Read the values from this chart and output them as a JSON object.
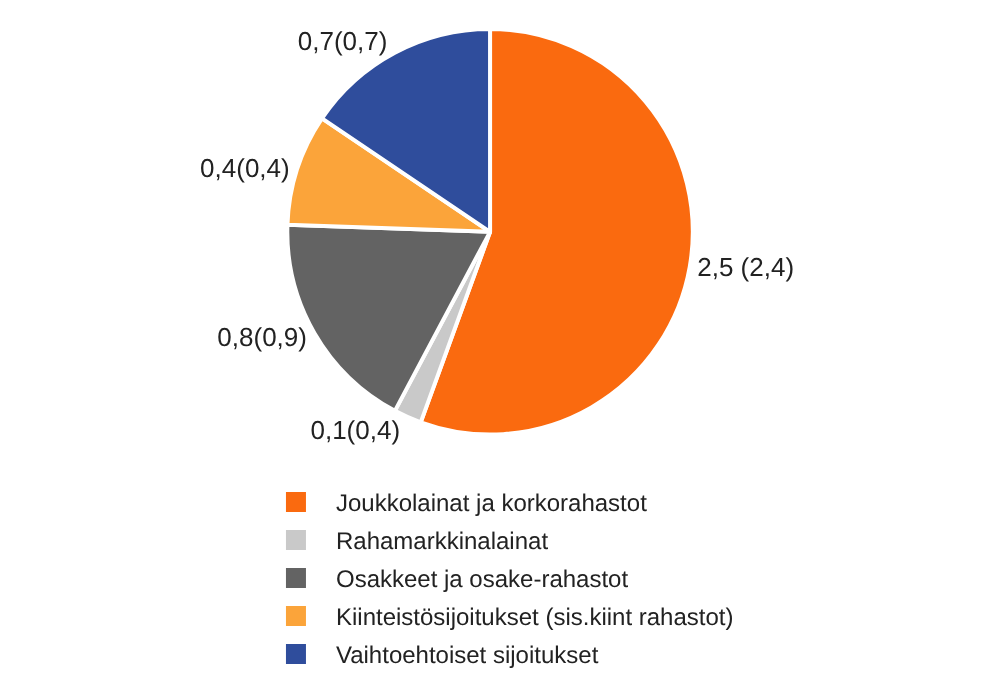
{
  "chart_data": {
    "type": "pie",
    "categories": [
      "Joukkolainat ja korkorahastot",
      "Rahamarkkinalainat",
      "Osakkeet ja osake-rahastot",
      "Kiinteistösijoitukset (sis.kiint rahastot)",
      "Vaihtoehtoiset sijoitukset"
    ],
    "values": [
      2.5,
      0.1,
      0.8,
      0.4,
      0.7
    ],
    "value_labels": [
      "2,5 (2,4)",
      "0,1(0,4)",
      "0,8(0,9)",
      "0,4(0,4)",
      "0,7(0,7)"
    ],
    "colors": [
      "#fa6a0f",
      "#c9c9c9",
      "#636363",
      "#fba43a",
      "#2f4d9c"
    ],
    "legend": "bottom"
  }
}
